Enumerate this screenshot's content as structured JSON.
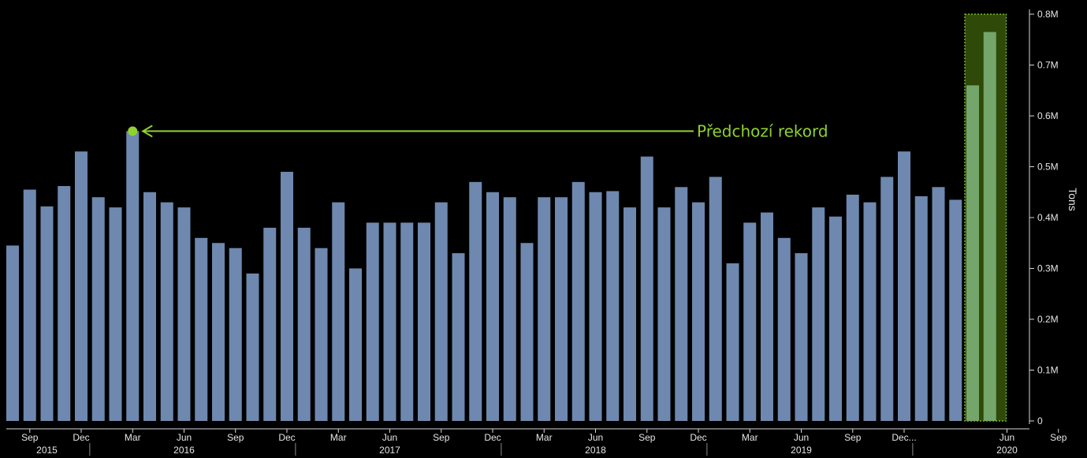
{
  "chart_data": {
    "type": "bar",
    "x_start": "2015-08",
    "frequency": "monthly",
    "values": [
      0.345,
      0.455,
      0.422,
      0.462,
      0.53,
      0.44,
      0.42,
      0.57,
      0.45,
      0.43,
      0.42,
      0.36,
      0.35,
      0.34,
      0.29,
      0.38,
      0.49,
      0.38,
      0.34,
      0.43,
      0.3,
      0.39,
      0.39,
      0.39,
      0.39,
      0.43,
      0.33,
      0.47,
      0.45,
      0.44,
      0.35,
      0.44,
      0.44,
      0.47,
      0.45,
      0.452,
      0.42,
      0.52,
      0.42,
      0.46,
      0.43,
      0.48,
      0.31,
      0.39,
      0.41,
      0.36,
      0.33,
      0.42,
      0.402,
      0.445,
      0.43,
      0.48,
      0.53,
      0.442,
      0.46,
      0.435,
      0.66,
      0.765
    ],
    "highlight_indices": [
      56,
      57
    ],
    "ylabel": "Tons",
    "ylim": [
      0,
      0.8
    ],
    "y_ticks": [
      {
        "value": 0,
        "label": "0"
      },
      {
        "value": 0.1,
        "label": "0.1M"
      },
      {
        "value": 0.2,
        "label": "0.2M"
      },
      {
        "value": 0.3,
        "label": "0.3M"
      },
      {
        "value": 0.4,
        "label": "0.4M"
      },
      {
        "value": 0.5,
        "label": "0.5M"
      },
      {
        "value": 0.6,
        "label": "0.6M"
      },
      {
        "value": 0.7,
        "label": "0.7M"
      },
      {
        "value": 0.8,
        "label": "0.8M"
      }
    ],
    "x_ticks": [
      {
        "index": 1,
        "label": "Sep"
      },
      {
        "index": 4,
        "label": "Dec"
      },
      {
        "index": 7,
        "label": "Mar"
      },
      {
        "index": 10,
        "label": "Jun"
      },
      {
        "index": 13,
        "label": "Sep"
      },
      {
        "index": 16,
        "label": "Dec"
      },
      {
        "index": 19,
        "label": "Mar"
      },
      {
        "index": 22,
        "label": "Jun"
      },
      {
        "index": 25,
        "label": "Sep"
      },
      {
        "index": 28,
        "label": "Dec"
      },
      {
        "index": 31,
        "label": "Mar"
      },
      {
        "index": 34,
        "label": "Jun"
      },
      {
        "index": 37,
        "label": "Sep"
      },
      {
        "index": 40,
        "label": "Dec"
      },
      {
        "index": 43,
        "label": "Mar"
      },
      {
        "index": 46,
        "label": "Jun"
      },
      {
        "index": 49,
        "label": "Sep"
      },
      {
        "index": 52,
        "label": "Dec..."
      },
      {
        "index": 58,
        "label": "Jun"
      },
      {
        "index": 61,
        "label": "Sep"
      }
    ],
    "years": [
      {
        "label": "2015",
        "index": 2
      },
      {
        "label": "2016",
        "index": 10
      },
      {
        "label": "2017",
        "index": 22
      },
      {
        "label": "2018",
        "index": 34
      },
      {
        "label": "2019",
        "index": 46
      },
      {
        "label": "2020",
        "index": 58
      }
    ],
    "year_separators": [
      4.5,
      16.5,
      28.5,
      40.5,
      52.5
    ],
    "annotation": {
      "text": "Předchozí rekord",
      "index": 7,
      "value": 0.57
    },
    "colors": {
      "bar": "#6e88af",
      "highlight_bar": "#74a56a",
      "highlight_box": "#2f4a08",
      "highlight_border": "#8fd12f",
      "annotation": "#8fd12f",
      "axis": "#d9d9d9"
    }
  }
}
